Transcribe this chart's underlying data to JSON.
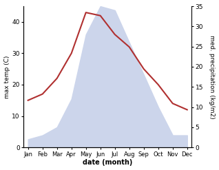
{
  "months": [
    "Jan",
    "Feb",
    "Mar",
    "Apr",
    "May",
    "Jun",
    "Jul",
    "Aug",
    "Sep",
    "Oct",
    "Nov",
    "Dec"
  ],
  "temp": [
    15,
    17,
    22,
    30,
    43,
    42,
    36,
    32,
    25,
    20,
    14,
    12
  ],
  "precip": [
    2,
    3,
    5,
    12,
    28,
    35,
    34,
    26,
    18,
    10,
    3,
    3
  ],
  "temp_color": "#b03030",
  "precip_color_fill": "#ccd5eb",
  "temp_ylim": [
    0,
    45
  ],
  "precip_ylim": [
    0,
    35
  ],
  "temp_yticks": [
    0,
    10,
    20,
    30,
    40
  ],
  "precip_yticks": [
    0,
    5,
    10,
    15,
    20,
    25,
    30,
    35
  ],
  "xlabel": "date (month)",
  "ylabel_left": "max temp (C)",
  "ylabel_right": "med. precipitation (kg/m2)"
}
